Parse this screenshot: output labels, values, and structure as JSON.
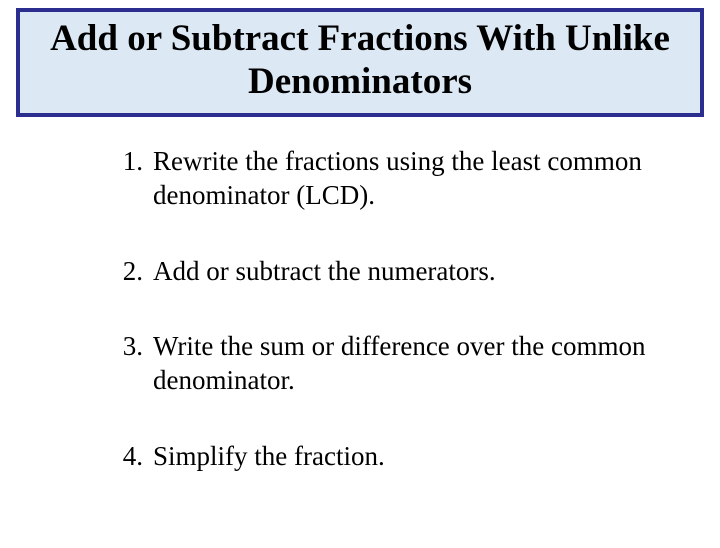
{
  "title": "Add or Subtract Fractions With Unlike Denominators",
  "steps": [
    {
      "num": "1.",
      "text": "Rewrite the fractions using the least common denominator (LCD)."
    },
    {
      "num": "2.",
      "text": "Add or subtract the numerators."
    },
    {
      "num": "3.",
      "text": "Write the sum or difference over the common denominator."
    },
    {
      "num": "4.",
      "text": "Simplify the fraction."
    }
  ],
  "colors": {
    "title_bg": "#dce8f4",
    "title_border": "#2b2e8f",
    "text": "#000000",
    "page_bg": "#ffffff"
  },
  "typography": {
    "title_fontsize": 37,
    "title_weight": "bold",
    "body_fontsize": 27,
    "font_family": "Times New Roman"
  }
}
